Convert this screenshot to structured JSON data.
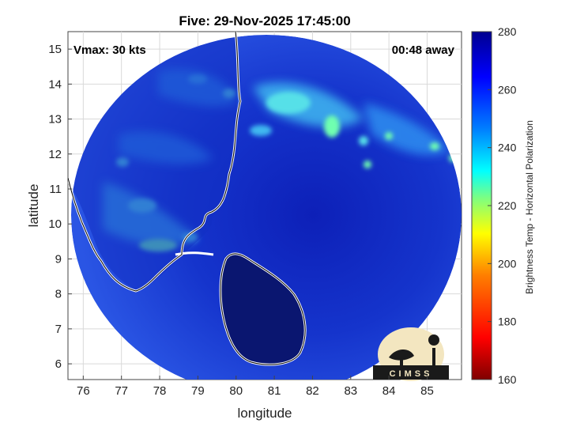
{
  "title": "Five: 29-Nov-2025 17:45:00",
  "vmax_label": "Vmax: 30 kts",
  "time_away_label": "00:48 away",
  "xaxis": {
    "label": "longitude",
    "ticks": [
      "76",
      "77",
      "78",
      "79",
      "80",
      "81",
      "82",
      "83",
      "84",
      "85"
    ],
    "range": [
      75.6,
      85.9
    ]
  },
  "yaxis": {
    "label": "latitude",
    "ticks": [
      "6",
      "7",
      "8",
      "9",
      "10",
      "11",
      "12",
      "13",
      "14",
      "15"
    ],
    "range": [
      5.55,
      15.5
    ]
  },
  "colorbar": {
    "label": "Brightness Temp - Horizontal Polarization",
    "ticks": [
      "160",
      "180",
      "200",
      "220",
      "240",
      "260",
      "280"
    ],
    "range": [
      160,
      280
    ],
    "colormap": [
      "#7f0000",
      "#ff0000",
      "#ff7f00",
      "#ffff00",
      "#7fff7f",
      "#00ffff",
      "#007fff",
      "#0000ff",
      "#00008f"
    ]
  },
  "logo": {
    "text": "CIMSS"
  },
  "colors": {
    "background_scene": "#1a3bd6",
    "cold_feature": "#42d6ee",
    "coastline": "#ffffff",
    "grid": "#d9d9d9"
  }
}
